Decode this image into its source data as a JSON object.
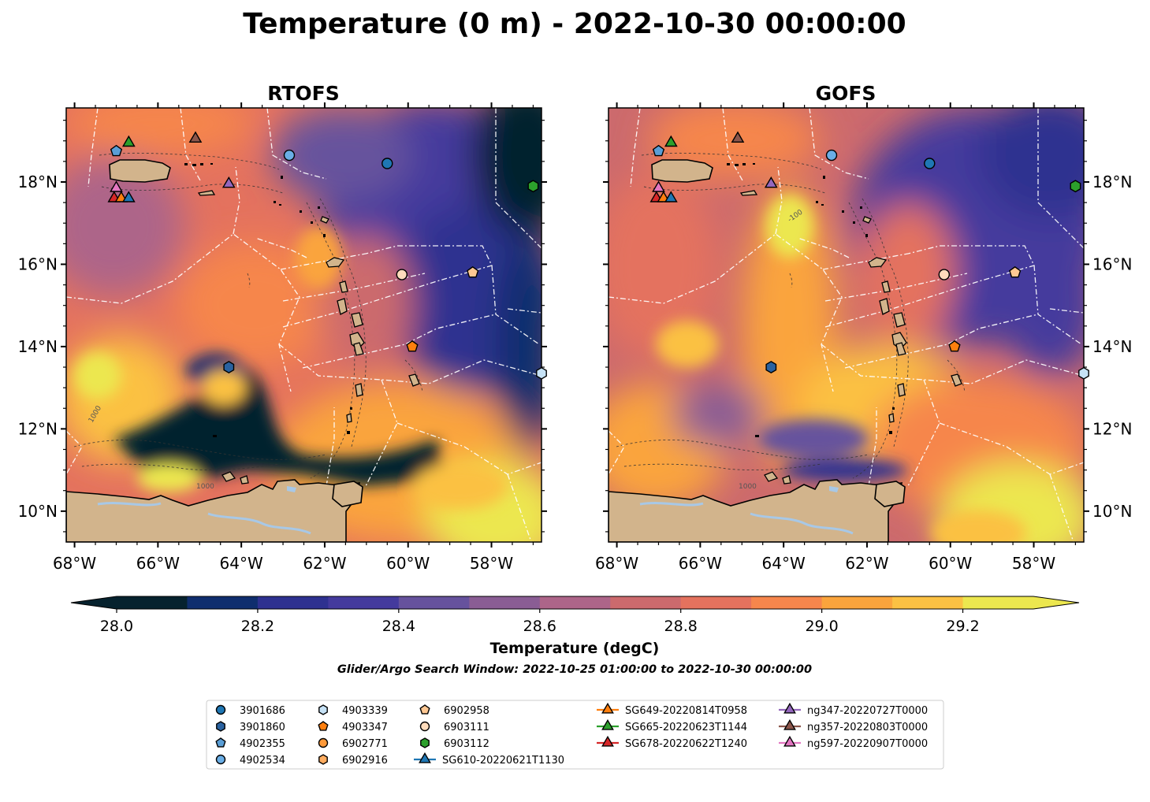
{
  "title": "Temperature (0 m) - 2022-10-30 00:00:00",
  "panels": [
    {
      "title": "RTOFS",
      "side": "left"
    },
    {
      "title": "GOFS",
      "side": "right"
    }
  ],
  "lon_ticks": [
    "68°W",
    "66°W",
    "64°W",
    "62°W",
    "60°W",
    "58°W"
  ],
  "lat_ticks": [
    "18°N",
    "16°N",
    "14°N",
    "12°N",
    "10°N"
  ],
  "extent": {
    "lon": [
      -68.2,
      -56.8
    ],
    "lat": [
      9.25,
      19.8
    ]
  },
  "colorbar": {
    "label": "Temperature (degC)",
    "ticks": [
      "28.0",
      "28.2",
      "28.4",
      "28.6",
      "28.8",
      "29.0",
      "29.2"
    ],
    "levels": [
      28.0,
      28.1,
      28.2,
      28.3,
      28.4,
      28.5,
      28.6,
      28.7,
      28.8,
      28.9,
      29.0,
      29.1,
      29.2,
      29.3
    ],
    "colors": [
      "#06222e",
      "#0f2e6e",
      "#2e3190",
      "#443a9d",
      "#66529d",
      "#8a5d94",
      "#ad6589",
      "#cc6a6d",
      "#e4725e",
      "#f6864c",
      "#faa43c",
      "#fbc143",
      "#ece74f"
    ],
    "under_color": "#06222e",
    "over_color": "#ece74f"
  },
  "contour_labels": [
    "1000",
    "-100",
    "1000"
  ],
  "search_window": "Glider/Argo Search Window: 2022-10-25 01:00:00 to 2022-10-30 00:00:00",
  "legend": [
    {
      "label": "3901686",
      "marker": "circle",
      "color": "#1f77b4",
      "line": false
    },
    {
      "label": "3901860",
      "marker": "hexagon",
      "color": "#2a62a0",
      "line": false
    },
    {
      "label": "4902355",
      "marker": "pentagon",
      "color": "#5a9ed6",
      "line": false
    },
    {
      "label": "4902534",
      "marker": "circle",
      "color": "#6aaee6",
      "line": false
    },
    {
      "label": "4903339",
      "marker": "hexagon",
      "color": "#c6e2f6",
      "line": false
    },
    {
      "label": "4903347",
      "marker": "pentagon",
      "color": "#ff7f0e",
      "line": false
    },
    {
      "label": "6902771",
      "marker": "circle",
      "color": "#ff9a3a",
      "line": false
    },
    {
      "label": "6902916",
      "marker": "hexagon",
      "color": "#ffad60",
      "line": false
    },
    {
      "label": "6902958",
      "marker": "pentagon",
      "color": "#ffc893",
      "line": false
    },
    {
      "label": "6903111",
      "marker": "circle",
      "color": "#ffdcbc",
      "line": false
    },
    {
      "label": "6903112",
      "marker": "hexagon",
      "color": "#2ca02c",
      "line": false
    },
    {
      "label": "SG610-20220621T1130",
      "marker": "triangle",
      "color": "#1f77b4",
      "line": true
    },
    {
      "label": "SG649-20220814T0958",
      "marker": "triangle",
      "color": "#ff7f0e",
      "line": true
    },
    {
      "label": "SG665-20220623T1144",
      "marker": "triangle",
      "color": "#2ca02c",
      "line": true
    },
    {
      "label": "SG678-20220622T1240",
      "marker": "triangle",
      "color": "#d62728",
      "line": true
    },
    {
      "label": "ng347-20220727T0000",
      "marker": "triangle",
      "color": "#9467bd",
      "line": true
    },
    {
      "label": "ng357-20220803T0000",
      "marker": "triangle",
      "color": "#8c564b",
      "line": true
    },
    {
      "label": "ng597-20220907T0000",
      "marker": "triangle",
      "color": "#e377c2",
      "line": true
    }
  ],
  "map_markers": [
    {
      "label": "3901686",
      "lon": -60.5,
      "lat": 18.45
    },
    {
      "label": "3901860",
      "lon": -64.3,
      "lat": 13.5
    },
    {
      "label": "4902355",
      "lon": -67.0,
      "lat": 18.75
    },
    {
      "label": "4902534",
      "lon": -62.85,
      "lat": 18.65
    },
    {
      "label": "4903339",
      "lon": -56.8,
      "lat": 13.35
    },
    {
      "label": "4903347",
      "lon": -59.9,
      "lat": 14.0
    },
    {
      "label": "6903111",
      "lon": -60.15,
      "lat": 15.75
    },
    {
      "label": "6902958",
      "lon": -58.45,
      "lat": 15.8
    },
    {
      "label": "6903112",
      "lon": -57.0,
      "lat": 17.9
    },
    {
      "label": "SG665-20220623T1144",
      "lon": -66.7,
      "lat": 18.95
    },
    {
      "label": "ng357-20220803T0000",
      "lon": -65.1,
      "lat": 19.05
    },
    {
      "label": "ng347-20220727T0000",
      "lon": -64.3,
      "lat": 17.95
    },
    {
      "label": "ng597-20220907T0000",
      "lon": -67.0,
      "lat": 17.85
    },
    {
      "label": "SG678-20220622T1240",
      "lon": -67.05,
      "lat": 17.6
    },
    {
      "label": "SG649-20220814T0958",
      "lon": -66.88,
      "lat": 17.6
    },
    {
      "label": "SG610-20220621T1130",
      "lon": -66.7,
      "lat": 17.6
    }
  ]
}
